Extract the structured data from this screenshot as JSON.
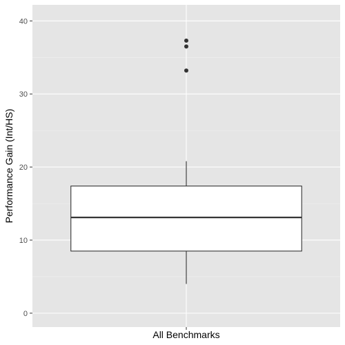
{
  "chart_data": {
    "type": "box",
    "title": "",
    "xlabel": "",
    "ylabel": "Performance Gain (Int/HS)",
    "ylim": [
      -1.9,
      42.2
    ],
    "yticks": [
      0,
      10,
      20,
      30,
      40
    ],
    "y_minor_ticks": [
      5,
      15,
      25,
      35
    ],
    "grid": true,
    "legend": "none",
    "categories": [
      "All Benchmarks"
    ],
    "boxes": [
      {
        "category": "All Benchmarks",
        "whisker_low": 4.0,
        "q1": 8.5,
        "median": 13.1,
        "q3": 17.4,
        "whisker_high": 20.8,
        "outliers": [
          33.2,
          36.5,
          37.3
        ]
      }
    ],
    "colors": {
      "panel_background": "#e5e5e5",
      "grid_major": "#ffffff",
      "grid_minor": "#f2f2f2",
      "box_fill": "#ffffff",
      "box_line": "#333333",
      "outlier": "#333333"
    }
  }
}
